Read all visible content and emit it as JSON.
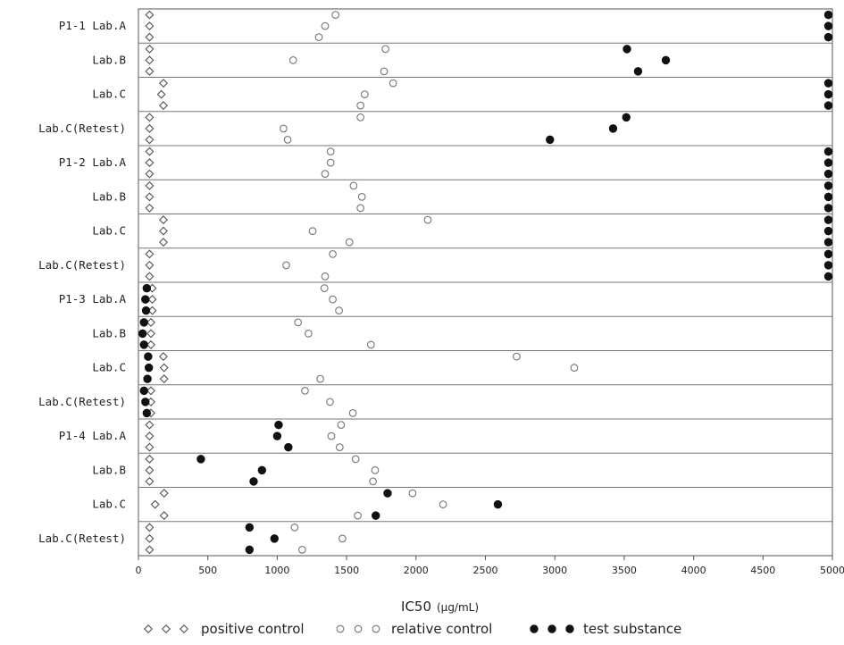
{
  "chart_data": {
    "type": "scatter",
    "orientation": "horizontal-dot-plot",
    "xlabel": "IC50",
    "xlabel_unit": "(μg/mL)",
    "xlim": [
      0,
      5000
    ],
    "xticks": [
      0,
      500,
      1000,
      1500,
      2000,
      2500,
      3000,
      3500,
      4000,
      4500,
      5000
    ],
    "legend_position": "bottom",
    "series": [
      {
        "name": "positive control",
        "marker": "diamond-open",
        "color": "#555555"
      },
      {
        "name": "relative control",
        "marker": "circle-open",
        "color": "#777777"
      },
      {
        "name": "test substance",
        "marker": "circle-filled",
        "color": "#111111"
      }
    ],
    "groups": [
      {
        "label": "P1-1 Lab.A",
        "positive": [
          80,
          80,
          80
        ],
        "relative": [
          1420,
          1345,
          1300
        ],
        "test": [
          5000,
          5000,
          5000
        ]
      },
      {
        "label": "Lab.B",
        "positive": [
          80,
          80,
          80
        ],
        "relative": [
          1780,
          1115,
          1770
        ],
        "test": [
          3520,
          3800,
          3600
        ]
      },
      {
        "label": "Lab.C",
        "positive": [
          180,
          165,
          180
        ],
        "relative": [
          1835,
          1630,
          1600
        ],
        "test": [
          5000,
          5000,
          5000
        ]
      },
      {
        "label": "Lab.C(Retest)",
        "positive": [
          80,
          80,
          80
        ],
        "relative": [
          1600,
          1045,
          1075
        ],
        "test": [
          3515,
          3420,
          2965
        ]
      },
      {
        "label": "P1-2 Lab.A",
        "positive": [
          80,
          80,
          80
        ],
        "relative": [
          1385,
          1385,
          1345
        ],
        "test": [
          5000,
          5000,
          5000
        ]
      },
      {
        "label": "Lab.B",
        "positive": [
          80,
          80,
          80
        ],
        "relative": [
          1550,
          1610,
          1600
        ],
        "test": [
          5000,
          5000,
          5000
        ]
      },
      {
        "label": "Lab.C",
        "positive": [
          180,
          180,
          180
        ],
        "relative": [
          2085,
          1255,
          1520
        ],
        "test": [
          5000,
          5000,
          5000
        ]
      },
      {
        "label": "Lab.C(Retest)",
        "positive": [
          80,
          80,
          80
        ],
        "relative": [
          1400,
          1065,
          1345
        ],
        "test": [
          5000,
          5000,
          5000
        ]
      },
      {
        "label": "P1-3 Lab.A",
        "positive": [
          100,
          100,
          100
        ],
        "relative": [
          1340,
          1400,
          1445
        ],
        "test": [
          60,
          50,
          55
        ]
      },
      {
        "label": "Lab.B",
        "positive": [
          90,
          90,
          90
        ],
        "relative": [
          1150,
          1225,
          1675
        ],
        "test": [
          40,
          30,
          40
        ]
      },
      {
        "label": "Lab.C",
        "positive": [
          180,
          185,
          185
        ],
        "relative": [
          2725,
          3140,
          1310
        ],
        "test": [
          70,
          75,
          65
        ]
      },
      {
        "label": "Lab.C(Retest)",
        "positive": [
          90,
          90,
          90
        ],
        "relative": [
          1200,
          1380,
          1545
        ],
        "test": [
          40,
          50,
          60
        ]
      },
      {
        "label": "P1-4 Lab.A",
        "positive": [
          80,
          80,
          80
        ],
        "relative": [
          1460,
          1390,
          1450
        ],
        "test": [
          1010,
          1000,
          1080
        ]
      },
      {
        "label": "Lab.B",
        "positive": [
          80,
          80,
          80
        ],
        "relative": [
          1565,
          1705,
          1690
        ],
        "test": [
          450,
          890,
          830
        ]
      },
      {
        "label": "Lab.C",
        "positive": [
          185,
          120,
          185
        ],
        "relative": [
          1975,
          2195,
          1580
        ],
        "test": [
          1795,
          2590,
          1710
        ]
      },
      {
        "label": "Lab.C(Retest)",
        "positive": [
          80,
          80,
          80
        ],
        "relative": [
          1125,
          1470,
          1180
        ],
        "test": [
          800,
          980,
          800
        ]
      }
    ]
  }
}
